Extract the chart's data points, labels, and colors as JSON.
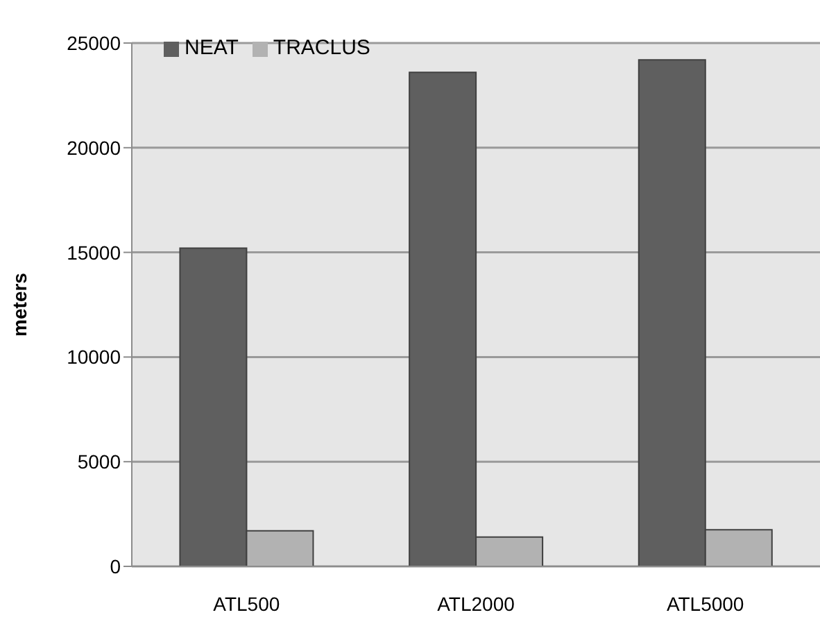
{
  "chart_data": {
    "type": "bar",
    "ylabel": "meters",
    "categories": [
      "ATL500",
      "ATL2000",
      "ATL5000"
    ],
    "series": [
      {
        "name": "NEAT",
        "color": "#5f5f5f",
        "values": [
          15200,
          23600,
          24200
        ]
      },
      {
        "name": "TRACLUS",
        "color": "#b2b2b2",
        "values": [
          1700,
          1400,
          1750
        ]
      }
    ],
    "ylim": [
      0,
      25000
    ],
    "yticks": [
      0,
      5000,
      10000,
      15000,
      20000,
      25000
    ],
    "grid": "y",
    "legend": "top left"
  }
}
